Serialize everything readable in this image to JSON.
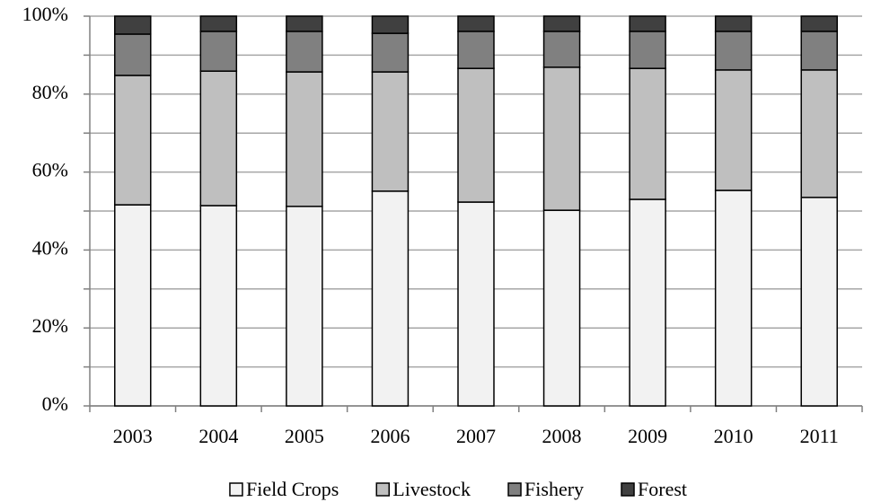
{
  "chart_data": {
    "type": "stacked_bar_percent",
    "categories": [
      "2003",
      "2004",
      "2005",
      "2006",
      "2007",
      "2008",
      "2009",
      "2010",
      "2011"
    ],
    "series": [
      {
        "name": "Field Crops",
        "color": "#f2f2f2",
        "values": [
          51.6,
          51.4,
          51.2,
          55.1,
          52.3,
          50.2,
          53.0,
          55.3,
          53.5
        ]
      },
      {
        "name": "Livestock",
        "color": "#bfbfbf",
        "values": [
          33.2,
          34.5,
          34.5,
          30.6,
          34.3,
          36.7,
          33.6,
          30.9,
          32.7
        ]
      },
      {
        "name": "Fishery",
        "color": "#808080",
        "values": [
          10.6,
          10.2,
          10.4,
          9.9,
          9.5,
          9.2,
          9.5,
          9.9,
          9.9
        ]
      },
      {
        "name": "Forest",
        "color": "#404040",
        "values": [
          4.6,
          3.9,
          3.9,
          4.4,
          3.9,
          3.9,
          3.9,
          3.9,
          3.9
        ]
      }
    ],
    "ylim": [
      0,
      100
    ],
    "yticks": [
      {
        "value": 0,
        "label": "0%"
      },
      {
        "value": 20,
        "label": "20%"
      },
      {
        "value": 40,
        "label": "40%"
      },
      {
        "value": 60,
        "label": "60%"
      },
      {
        "value": 80,
        "label": "80%"
      },
      {
        "value": 100,
        "label": "100%"
      }
    ],
    "minor_yticks": [
      10,
      30,
      50,
      70,
      90
    ],
    "grid": true,
    "legend": "bottom"
  }
}
